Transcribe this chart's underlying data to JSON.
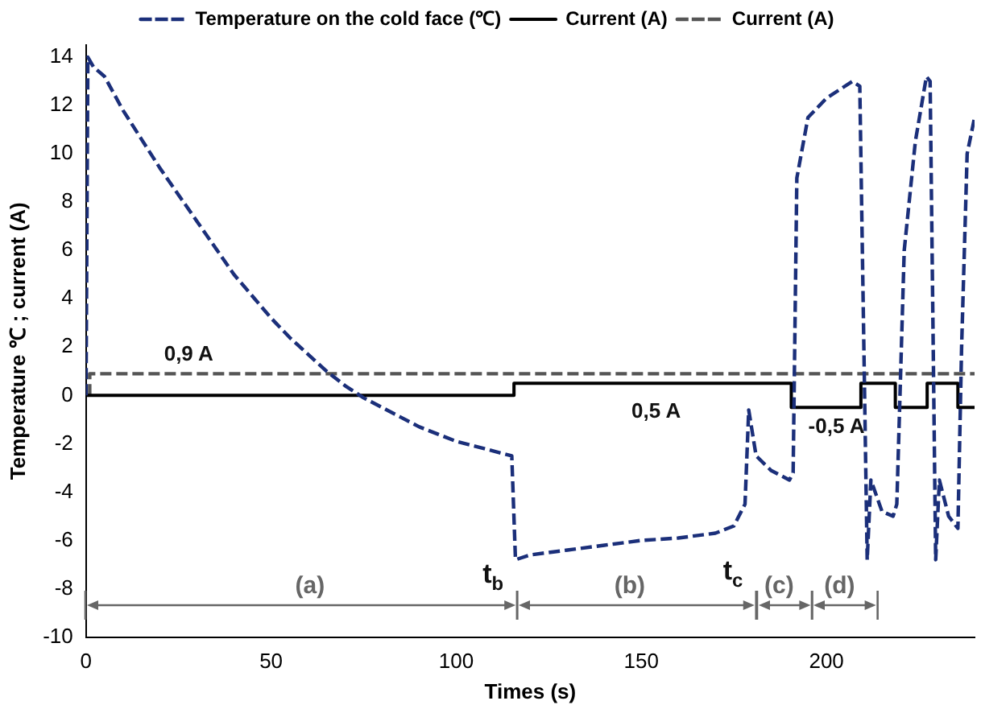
{
  "chart_data": {
    "type": "line",
    "xlabel": "Times (s)",
    "ylabel": "Temperature ℃ ; current (A)",
    "xlim": [
      0,
      240
    ],
    "xticks": [
      0,
      50,
      100,
      150,
      200
    ],
    "ylim": [
      -10,
      14.5
    ],
    "yticks": [
      -10,
      -8,
      -6,
      -4,
      -2,
      0,
      2,
      4,
      6,
      8,
      10,
      12,
      14
    ],
    "grid": false,
    "legend": "top",
    "marker": "none",
    "series": [
      {
        "name": "Temperature on the cold face (℃)",
        "color": "#1b2f7a",
        "line_style": "dashed",
        "x": [
          0,
          0.5,
          2,
          5,
          10,
          15,
          20,
          25,
          30,
          35,
          40,
          45,
          50,
          55,
          60,
          65,
          70,
          75,
          80,
          85,
          90,
          95,
          100,
          105,
          110,
          115,
          116,
          120,
          130,
          140,
          150,
          160,
          170,
          175,
          178,
          179,
          181,
          185,
          190,
          191,
          192,
          195,
          200,
          207,
          209,
          211,
          212,
          215,
          218,
          219,
          221,
          224,
          227,
          228,
          229.5,
          230.5,
          233,
          235.5,
          236.5,
          238,
          240
        ],
        "values": [
          0,
          14,
          13.6,
          13.2,
          11.8,
          10.6,
          9.4,
          8.3,
          7.2,
          6.1,
          5,
          4.1,
          3.2,
          2.4,
          1.7,
          1,
          0.4,
          -0.1,
          -0.5,
          -0.9,
          -1.3,
          -1.6,
          -1.9,
          -2.1,
          -2.3,
          -2.5,
          -6.8,
          -6.6,
          -6.4,
          -6.2,
          -6,
          -5.9,
          -5.7,
          -5.4,
          -4.5,
          -0.6,
          -2.5,
          -3.1,
          -3.5,
          -3.2,
          9,
          11.5,
          12.3,
          13,
          12.8,
          -6.8,
          -3.5,
          -4.8,
          -5,
          -4.5,
          6,
          10.5,
          13.2,
          13,
          -6.8,
          -3.5,
          -5,
          -5.5,
          2,
          10,
          11.5
        ]
      },
      {
        "name": "Current (A)",
        "color": "#000000",
        "type": "step",
        "line_style": "solid",
        "x": [
          0,
          115.6,
          190.5,
          209.3,
          218.6,
          227.2,
          235.5,
          240
        ],
        "values": [
          0,
          0.5,
          -0.5,
          0.5,
          -0.5,
          0.5,
          -0.5,
          -0.5
        ]
      },
      {
        "name": "Current (A)",
        "color": "#555555",
        "type": "line",
        "line_style": "dashed",
        "x": [
          1,
          1,
          240
        ],
        "values": [
          0,
          0.9,
          0.9
        ]
      }
    ],
    "annotations": [
      "0,9 A",
      "0,5 A",
      "-0,5 A",
      "t$_{b}$",
      "t$_{c}$",
      "(a)",
      "(b)",
      "(c)",
      "(d)"
    ]
  }
}
